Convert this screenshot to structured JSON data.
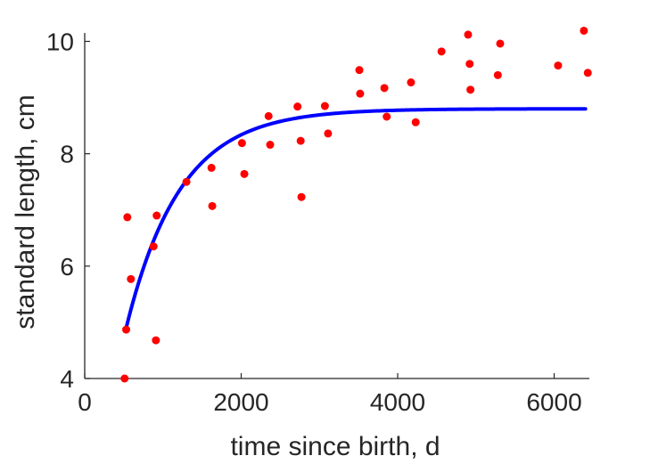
{
  "chart_data": {
    "type": "scatter",
    "xlabel": "time since birth, d",
    "ylabel": "standard length, cm",
    "xlim": [
      0,
      6450
    ],
    "ylim": [
      4,
      10.15
    ],
    "xticks": [
      0,
      2000,
      4000,
      6000
    ],
    "yticks": [
      4,
      6,
      8,
      10
    ],
    "grid": false,
    "colors": {
      "points": "#ff0000",
      "fit": "#0000ff",
      "axis": "#262626"
    },
    "series": [
      {
        "type": "scatter",
        "points": [
          [
            510,
            4.0
          ],
          [
            530,
            4.87
          ],
          [
            545,
            6.87
          ],
          [
            590,
            5.77
          ],
          [
            880,
            6.35
          ],
          [
            910,
            4.68
          ],
          [
            920,
            6.9
          ],
          [
            1300,
            7.5
          ],
          [
            1620,
            7.75
          ],
          [
            1630,
            7.07
          ],
          [
            2010,
            8.19
          ],
          [
            2040,
            7.64
          ],
          [
            2350,
            8.67
          ],
          [
            2370,
            8.16
          ],
          [
            2720,
            8.84
          ],
          [
            2760,
            8.23
          ],
          [
            2770,
            7.23
          ],
          [
            3070,
            8.85
          ],
          [
            3110,
            8.36
          ],
          [
            3510,
            9.49
          ],
          [
            3520,
            9.07
          ],
          [
            3830,
            9.17
          ],
          [
            3860,
            8.66
          ],
          [
            4170,
            9.27
          ],
          [
            4230,
            8.56
          ],
          [
            4560,
            9.82
          ],
          [
            4900,
            10.12
          ],
          [
            4920,
            9.6
          ],
          [
            4930,
            9.14
          ],
          [
            5280,
            9.4
          ],
          [
            5310,
            9.96
          ],
          [
            6050,
            9.57
          ],
          [
            6380,
            10.19
          ],
          [
            6430,
            9.44
          ]
        ]
      },
      {
        "type": "line",
        "model": {
          "x0": 530,
          "y0": 4.9,
          "asymptote": 8.8,
          "rate": 0.00145,
          "x_start": 530,
          "x_end": 6400
        }
      }
    ]
  }
}
